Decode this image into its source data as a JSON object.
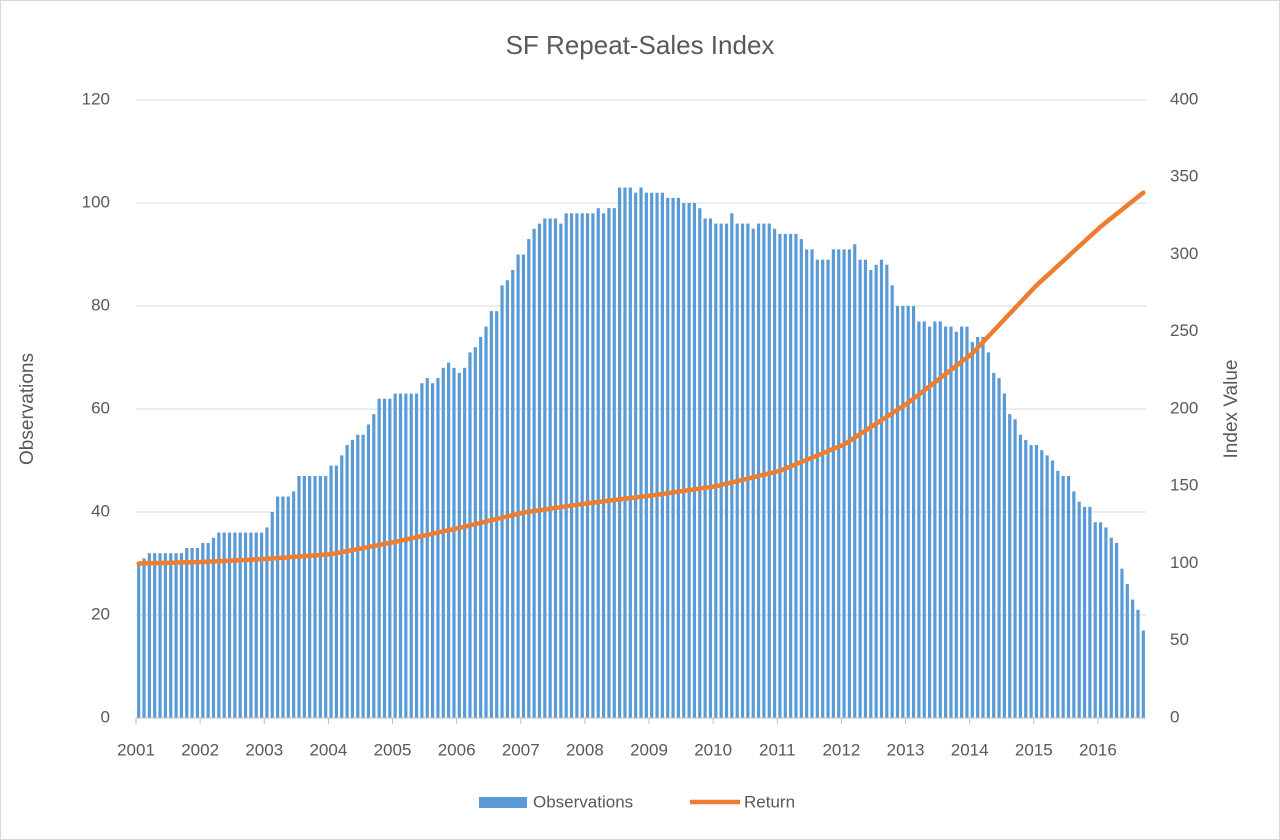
{
  "chart_data": {
    "type": "bar_line",
    "title": "SF Repeat-Sales Index",
    "y_label": "Observations",
    "y2_label": "Index Value",
    "categories": [
      "2001",
      null,
      null,
      null,
      null,
      null,
      null,
      null,
      null,
      null,
      null,
      null,
      "2002",
      null,
      null,
      null,
      null,
      null,
      null,
      null,
      null,
      null,
      null,
      null,
      "2003",
      null,
      null,
      null,
      null,
      null,
      null,
      null,
      null,
      null,
      null,
      null,
      "2004",
      null,
      null,
      null,
      null,
      null,
      null,
      null,
      null,
      null,
      null,
      null,
      "2005",
      null,
      null,
      null,
      null,
      null,
      null,
      null,
      null,
      null,
      null,
      null,
      "2006",
      null,
      null,
      null,
      null,
      null,
      null,
      null,
      null,
      null,
      null,
      null,
      "2007",
      null,
      null,
      null,
      null,
      null,
      null,
      null,
      null,
      null,
      null,
      null,
      "2008",
      null,
      null,
      null,
      null,
      null,
      null,
      null,
      null,
      null,
      null,
      null,
      "2009",
      null,
      null,
      null,
      null,
      null,
      null,
      null,
      null,
      null,
      null,
      null,
      "2010",
      null,
      null,
      null,
      null,
      null,
      null,
      null,
      null,
      null,
      null,
      null,
      "2011",
      null,
      null,
      null,
      null,
      null,
      null,
      null,
      null,
      null,
      null,
      null,
      "2012",
      null,
      null,
      null,
      null,
      null,
      null,
      null,
      null,
      null,
      null,
      null,
      "2013",
      null,
      null,
      null,
      null,
      null,
      null,
      null,
      null,
      null,
      null,
      null,
      "2014",
      null,
      null,
      null,
      null,
      null,
      null,
      null,
      null,
      null,
      null,
      null,
      "2015",
      null,
      null,
      null,
      null,
      null,
      null,
      null,
      null,
      null,
      null,
      null,
      "2016",
      null,
      null,
      null,
      null,
      null,
      null,
      null,
      null
    ],
    "series": [
      {
        "name": "Observations",
        "type": "bar",
        "color": "#5b9bd5",
        "axis": "y",
        "values": [
          30,
          31,
          32,
          32,
          32,
          32,
          32,
          32,
          32,
          33,
          33,
          33,
          34,
          34,
          35,
          36,
          36,
          36,
          36,
          36,
          36,
          36,
          36,
          36,
          37,
          40,
          43,
          43,
          43,
          44,
          47,
          47,
          47,
          47,
          47,
          47,
          49,
          49,
          51,
          53,
          54,
          55,
          55,
          57,
          59,
          62,
          62,
          62,
          63,
          63,
          63,
          63,
          63,
          65,
          66,
          65,
          66,
          68,
          69,
          68,
          67,
          68,
          71,
          72,
          74,
          76,
          79,
          79,
          84,
          85,
          87,
          90,
          90,
          93,
          95,
          96,
          97,
          97,
          97,
          96,
          98,
          98,
          98,
          98,
          98,
          98,
          99,
          98,
          99,
          99,
          103,
          103,
          103,
          102,
          103,
          102,
          102,
          102,
          102,
          101,
          101,
          101,
          100,
          100,
          100,
          99,
          97,
          97,
          96,
          96,
          96,
          98,
          96,
          96,
          96,
          95,
          96,
          96,
          96,
          95,
          94,
          94,
          94,
          94,
          93,
          91,
          91,
          89,
          89,
          89,
          91,
          91,
          91,
          91,
          92,
          89,
          89,
          87,
          88,
          89,
          88,
          84,
          80,
          80,
          80,
          80,
          77,
          77,
          76,
          77,
          77,
          76,
          76,
          75,
          76,
          76,
          73,
          74,
          74,
          71,
          67,
          66,
          63,
          59,
          58,
          55,
          54,
          53,
          53,
          52,
          51,
          50,
          48,
          47,
          47,
          44,
          42,
          41,
          41,
          38,
          38,
          37,
          35,
          34,
          29,
          26,
          23,
          21,
          17
        ]
      },
      {
        "name": "Return",
        "type": "line",
        "color": "#ed7d31",
        "axis": "y2",
        "values": [
          100,
          100.1,
          100.2,
          100.3,
          100.3,
          100.4,
          100.5,
          100.6,
          100.7,
          100.8,
          100.8,
          100.9,
          101,
          101.2,
          101.3,
          101.5,
          101.7,
          101.8,
          102,
          102.2,
          102.3,
          102.5,
          102.7,
          102.8,
          103,
          103.3,
          103.5,
          103.8,
          104,
          104.3,
          104.5,
          104.8,
          105,
          105.3,
          105.5,
          105.8,
          106,
          106.7,
          107.3,
          108,
          108.7,
          109.3,
          110,
          110.7,
          111.3,
          112,
          112.7,
          113.3,
          114,
          114.8,
          115.5,
          116.3,
          117,
          117.8,
          118.5,
          119.3,
          120,
          120.8,
          121.5,
          122.3,
          123,
          123.8,
          124.7,
          125.5,
          126.3,
          127.2,
          128,
          128.8,
          129.7,
          130.5,
          131.3,
          132.2,
          133,
          133.5,
          134,
          134.5,
          135,
          135.5,
          136,
          136.5,
          137,
          137.5,
          138,
          138.5,
          139,
          139.4,
          139.8,
          140.3,
          140.7,
          141.1,
          141.5,
          141.9,
          142.3,
          142.8,
          143.2,
          143.6,
          144,
          144.5,
          145,
          145.5,
          146,
          146.5,
          147,
          147.5,
          148,
          148.5,
          149,
          149.5,
          150,
          150.8,
          151.7,
          152.5,
          153.3,
          154.2,
          155,
          155.8,
          156.7,
          157.5,
          158.3,
          159.2,
          160,
          161.4,
          162.8,
          164.3,
          165.7,
          167.1,
          168.5,
          169.9,
          171.3,
          172.8,
          174.2,
          175.6,
          177,
          179.3,
          181.5,
          183.8,
          186,
          188.3,
          190.5,
          192.8,
          195,
          197.3,
          199.5,
          201.8,
          204,
          206.7,
          209.3,
          212,
          214.7,
          217.3,
          220,
          222.7,
          225.3,
          228,
          230.7,
          233.3,
          236,
          239.7,
          243.3,
          247,
          250.7,
          254.3,
          258,
          261.7,
          265.3,
          269,
          272.7,
          276.3,
          280,
          283.2,
          286.3,
          289.5,
          292.7,
          295.8,
          299,
          302.2,
          305.3,
          308.5,
          311.7,
          314.8,
          318,
          320.8,
          323.5,
          326.3,
          329,
          331.8,
          334.5,
          337.3,
          340
        ]
      }
    ],
    "ylim": [
      0,
      120
    ],
    "yticks": [
      0,
      20,
      40,
      60,
      80,
      100,
      120
    ],
    "y2lim": [
      0,
      400
    ],
    "y2ticks": [
      0,
      50,
      100,
      150,
      200,
      250,
      300,
      350,
      400
    ],
    "grid": true,
    "legend": "bottom"
  }
}
